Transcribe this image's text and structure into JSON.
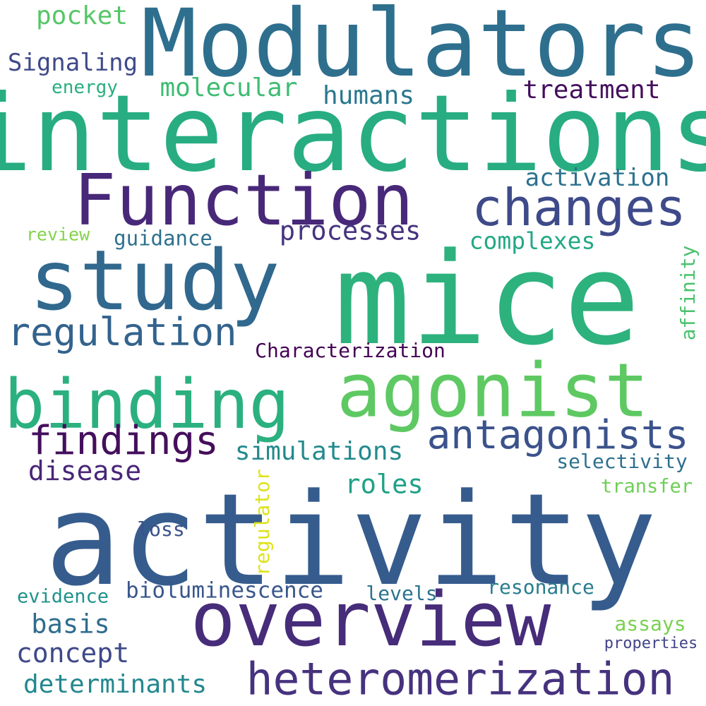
{
  "colors": {
    "background": "#ffffff",
    "palette": [
      "#440154",
      "#482475",
      "#414487",
      "#355f8d",
      "#2a788e",
      "#21918c",
      "#22a884",
      "#44bf70",
      "#7ad151",
      "#bddf26",
      "#fde725"
    ]
  },
  "words": [
    {
      "text": "Modulators",
      "color": "#2e6f8e"
    },
    {
      "text": "interactions",
      "color": "#27ad81"
    },
    {
      "text": "Function",
      "color": "#482878"
    },
    {
      "text": "changes",
      "color": "#3e4a89"
    },
    {
      "text": "study",
      "color": "#31688e"
    },
    {
      "text": "mice",
      "color": "#2db27d"
    },
    {
      "text": "agonist",
      "color": "#5ec962"
    },
    {
      "text": "binding",
      "color": "#2bb07f"
    },
    {
      "text": "activity",
      "color": "#365c8d"
    },
    {
      "text": "overview",
      "color": "#472c7a"
    },
    {
      "text": "heteromerization",
      "color": "#46327e"
    },
    {
      "text": "regulation",
      "color": "#33638d"
    },
    {
      "text": "findings",
      "color": "#440f5c"
    },
    {
      "text": "antagonists",
      "color": "#3b528b"
    },
    {
      "text": "pocket",
      "color": "#56c667"
    },
    {
      "text": "Signaling",
      "color": "#3e4989"
    },
    {
      "text": "energy",
      "color": "#29af7f"
    },
    {
      "text": "molecular",
      "color": "#3fbc73"
    },
    {
      "text": "humans",
      "color": "#2a778e"
    },
    {
      "text": "treatment",
      "color": "#440f5c"
    },
    {
      "text": "activation",
      "color": "#2c718e"
    },
    {
      "text": "review",
      "color": "#84d44b"
    },
    {
      "text": "guidance",
      "color": "#2d708e"
    },
    {
      "text": "processes",
      "color": "#46337f"
    },
    {
      "text": "complexes",
      "color": "#22a884"
    },
    {
      "text": "affinity",
      "color": "#4ac16d"
    },
    {
      "text": "Characterization",
      "color": "#440154"
    },
    {
      "text": "simulations",
      "color": "#238a8d"
    },
    {
      "text": "disease",
      "color": "#482677"
    },
    {
      "text": "selectivity",
      "color": "#2d708e"
    },
    {
      "text": "roles",
      "color": "#1fa187"
    },
    {
      "text": "regulator",
      "color": "#dde318"
    },
    {
      "text": "transfer",
      "color": "#6ece58"
    },
    {
      "text": "loss",
      "color": "#3b528b"
    },
    {
      "text": "evidence",
      "color": "#20928c"
    },
    {
      "text": "bioluminescence",
      "color": "#39568c"
    },
    {
      "text": "levels",
      "color": "#2c728e"
    },
    {
      "text": "resonance",
      "color": "#287d8e"
    },
    {
      "text": "basis",
      "color": "#2f6c8e"
    },
    {
      "text": "assays",
      "color": "#7ad151"
    },
    {
      "text": "concept",
      "color": "#3e4989"
    },
    {
      "text": "properties",
      "color": "#414487"
    },
    {
      "text": "determinants",
      "color": "#23888e"
    }
  ]
}
